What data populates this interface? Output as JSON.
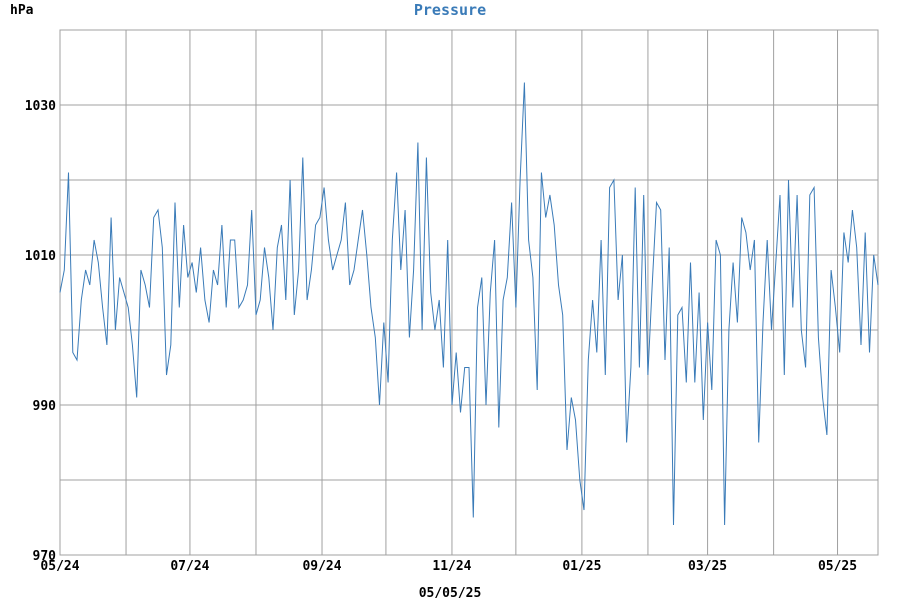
{
  "chart_data": {
    "type": "line",
    "title": "Pressure",
    "unit_label": "hPa",
    "date_label": "05/05/25",
    "y_ticks": [
      "970",
      "990",
      "1010",
      "1030"
    ],
    "x_ticks": [
      "05/24",
      "07/24",
      "09/24",
      "11/24",
      "01/25",
      "03/25",
      "05/25"
    ],
    "x_range": [
      "2024-05-01",
      "2025-05-20"
    ],
    "ylim": [
      970,
      1040
    ],
    "grid": true,
    "line_color": "#3a7bb8",
    "series": [
      {
        "start": "2024-05-01",
        "step_days": 2,
        "values": [
          1005,
          1008,
          1021,
          997,
          996,
          1004,
          1008,
          1006,
          1012,
          1009,
          1003,
          998,
          1015,
          1000,
          1007,
          1005,
          1003,
          998,
          991,
          1008,
          1006,
          1003,
          1015,
          1016,
          1011,
          994,
          998,
          1017,
          1003,
          1014,
          1007,
          1009,
          1005,
          1011,
          1004,
          1001,
          1008,
          1006,
          1014,
          1003,
          1012,
          1012,
          1003,
          1004,
          1006,
          1016,
          1002,
          1004,
          1011,
          1007,
          1000,
          1011,
          1014,
          1004,
          1020,
          1002,
          1008,
          1023,
          1004,
          1008,
          1014,
          1015,
          1019,
          1012,
          1008,
          1010,
          1012,
          1017,
          1006,
          1008,
          1012,
          1016,
          1010,
          1003,
          999,
          990,
          1001,
          993,
          1012,
          1021,
          1008,
          1016,
          999,
          1008,
          1025,
          1000,
          1023,
          1005,
          1000,
          1004,
          995,
          1012,
          990,
          997,
          989,
          995,
          995,
          975,
          1003,
          1007,
          990,
          1005,
          1012,
          987,
          1004,
          1007,
          1017,
          1003,
          1020,
          1033,
          1012,
          1007,
          992,
          1021,
          1015,
          1018,
          1014,
          1006,
          1002,
          984,
          991,
          988,
          980,
          976,
          996,
          1004,
          997,
          1012,
          994,
          1019,
          1020,
          1004,
          1010,
          985,
          995,
          1019,
          995,
          1018,
          994,
          1006,
          1017,
          1016,
          996,
          1011,
          974,
          1002,
          1003,
          993,
          1009,
          993,
          1005,
          988,
          1001,
          992,
          1012,
          1010,
          974,
          1000,
          1009,
          1001,
          1015,
          1013,
          1008,
          1012,
          985,
          1001,
          1012,
          1000,
          1009,
          1018,
          994,
          1020,
          1003,
          1018,
          1000,
          995,
          1018,
          1019,
          999,
          991,
          986,
          1008,
          1003,
          997,
          1013,
          1009,
          1016,
          1011,
          998,
          1013,
          997,
          1010,
          1006
        ]
      }
    ]
  }
}
